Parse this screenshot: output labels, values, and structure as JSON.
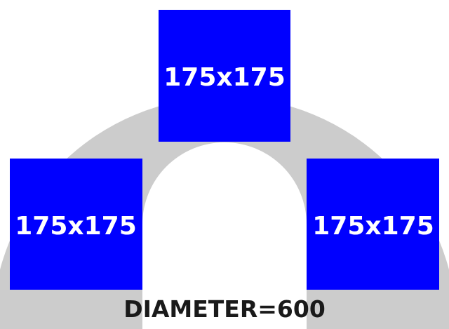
{
  "colors": {
    "ring": "#cccccc",
    "box": "#0000ff",
    "box_text": "#ffffff",
    "caption_text": "#1a1a1a",
    "background": "#ffffff"
  },
  "boxes": [
    {
      "label": "175x175"
    },
    {
      "label": "175x175"
    },
    {
      "label": "175x175"
    }
  ],
  "caption": "DIAMETER=600"
}
